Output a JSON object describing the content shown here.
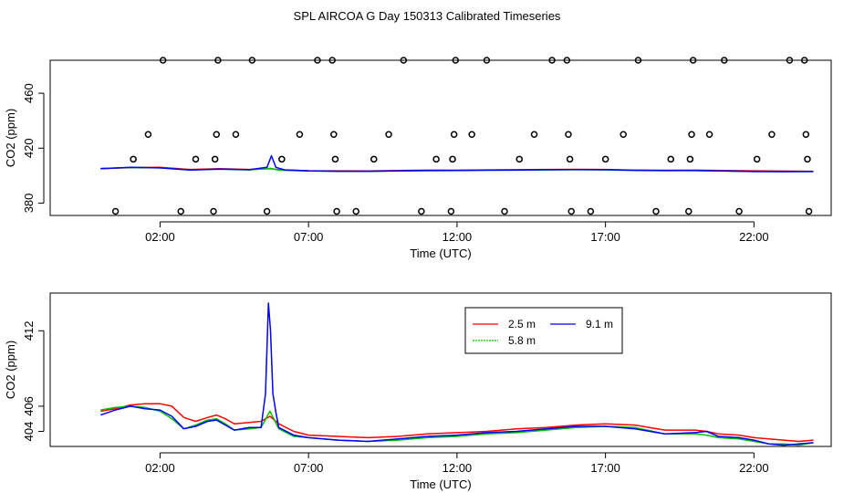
{
  "title": "SPL AIRCOA G  Day 150313  Calibrated Timeseries",
  "colors": {
    "red": "#ff0000",
    "green": "#00c000",
    "blue": "#0000ff",
    "axis": "#000000"
  },
  "chart_data": [
    {
      "type": "line",
      "title": "",
      "xlabel": "Time (UTC)",
      "ylabel": "CO2 (ppm)",
      "xlim": [
        -1.7,
        24.6
      ],
      "ylim": [
        371,
        484
      ],
      "x_ticks": [
        2,
        7,
        12,
        17,
        22
      ],
      "x_tick_labels": [
        "02:00",
        "07:00",
        "12:00",
        "17:00",
        "22:00"
      ],
      "y_ticks": [
        380,
        420,
        460
      ],
      "y_tick_labels": [
        "380",
        "420",
        "460"
      ],
      "series": [
        {
          "name": "red",
          "color": "#ff0000",
          "x": [
            0,
            1,
            2,
            3,
            4,
            5,
            5.7,
            6,
            7,
            8,
            9,
            10,
            11,
            12,
            13,
            14,
            15,
            16,
            17,
            18,
            19,
            20,
            21,
            22,
            23,
            24
          ],
          "values": [
            405,
            405.8,
            406,
            404.5,
            405,
            404.5,
            405,
            404.3,
            403.6,
            403.5,
            403.4,
            403.8,
            404,
            404,
            404.2,
            404.3,
            404.5,
            404.6,
            404.5,
            404,
            403.9,
            404,
            403.8,
            403.5,
            403.3,
            403.2
          ]
        },
        {
          "name": "green",
          "color": "#00c000",
          "x": [
            0,
            1,
            2,
            3,
            4,
            5,
            5.7,
            6,
            7,
            8,
            9,
            10,
            11,
            12,
            13,
            14,
            15,
            16,
            17,
            18,
            19,
            20,
            21,
            22,
            23,
            24
          ],
          "values": [
            405.2,
            405.9,
            405.6,
            404.2,
            404.7,
            404.2,
            405.3,
            404,
            403.4,
            403.2,
            403.1,
            403.4,
            403.6,
            403.7,
            403.9,
            404,
            404.2,
            404.3,
            404.2,
            403.8,
            403.6,
            403.7,
            403.3,
            403,
            402.9,
            403
          ]
        },
        {
          "name": "blue",
          "color": "#0000ff",
          "x": [
            0,
            1,
            2,
            3,
            4,
            5,
            5.6,
            5.75,
            5.9,
            6.2,
            7,
            8,
            9,
            10,
            11,
            12,
            13,
            14,
            15,
            16,
            17,
            18,
            19,
            20,
            21,
            22,
            23,
            24
          ],
          "values": [
            405,
            406,
            405.6,
            404.1,
            404.8,
            404.3,
            406,
            414.5,
            406,
            404.2,
            403.5,
            403.2,
            403.2,
            403.5,
            403.7,
            403.8,
            404,
            404.1,
            404.3,
            404.4,
            404.3,
            403.9,
            403.7,
            403.8,
            403.4,
            403,
            402.9,
            403
          ]
        }
      ],
      "scatter": {
        "marker": "open-circle",
        "points": [
          {
            "x": 0.5,
            "y": 374
          },
          {
            "x": 1.1,
            "y": 412
          },
          {
            "x": 1.6,
            "y": 430
          },
          {
            "x": 2.1,
            "y": 484
          },
          {
            "x": 2.7,
            "y": 374
          },
          {
            "x": 3.2,
            "y": 412
          },
          {
            "x": 3.8,
            "y": 374
          },
          {
            "x": 3.85,
            "y": 412
          },
          {
            "x": 3.9,
            "y": 430
          },
          {
            "x": 3.95,
            "y": 484
          },
          {
            "x": 4.55,
            "y": 430
          },
          {
            "x": 5.1,
            "y": 484
          },
          {
            "x": 5.6,
            "y": 374
          },
          {
            "x": 6.1,
            "y": 412
          },
          {
            "x": 6.7,
            "y": 430
          },
          {
            "x": 7.3,
            "y": 484
          },
          {
            "x": 7.8,
            "y": 484
          },
          {
            "x": 7.85,
            "y": 430
          },
          {
            "x": 7.9,
            "y": 412
          },
          {
            "x": 7.95,
            "y": 374
          },
          {
            "x": 8.6,
            "y": 374
          },
          {
            "x": 9.2,
            "y": 412
          },
          {
            "x": 9.7,
            "y": 430
          },
          {
            "x": 10.2,
            "y": 484
          },
          {
            "x": 10.8,
            "y": 374
          },
          {
            "x": 11.3,
            "y": 412
          },
          {
            "x": 11.8,
            "y": 374
          },
          {
            "x": 11.85,
            "y": 412
          },
          {
            "x": 11.9,
            "y": 430
          },
          {
            "x": 11.95,
            "y": 484
          },
          {
            "x": 12.5,
            "y": 430
          },
          {
            "x": 13.0,
            "y": 484
          },
          {
            "x": 13.6,
            "y": 374
          },
          {
            "x": 14.1,
            "y": 412
          },
          {
            "x": 14.6,
            "y": 430
          },
          {
            "x": 15.2,
            "y": 484
          },
          {
            "x": 15.7,
            "y": 484
          },
          {
            "x": 15.75,
            "y": 430
          },
          {
            "x": 15.8,
            "y": 412
          },
          {
            "x": 15.85,
            "y": 374
          },
          {
            "x": 16.5,
            "y": 374
          },
          {
            "x": 17.0,
            "y": 412
          },
          {
            "x": 17.6,
            "y": 430
          },
          {
            "x": 18.1,
            "y": 484
          },
          {
            "x": 18.7,
            "y": 374
          },
          {
            "x": 19.2,
            "y": 412
          },
          {
            "x": 19.8,
            "y": 374
          },
          {
            "x": 19.85,
            "y": 412
          },
          {
            "x": 19.9,
            "y": 430
          },
          {
            "x": 19.95,
            "y": 484
          },
          {
            "x": 20.5,
            "y": 430
          },
          {
            "x": 21.0,
            "y": 484
          },
          {
            "x": 21.5,
            "y": 374
          },
          {
            "x": 22.1,
            "y": 412
          },
          {
            "x": 22.6,
            "y": 430
          },
          {
            "x": 23.2,
            "y": 484
          },
          {
            "x": 23.7,
            "y": 484
          },
          {
            "x": 23.75,
            "y": 430
          },
          {
            "x": 23.8,
            "y": 412
          },
          {
            "x": 23.85,
            "y": 374
          }
        ]
      }
    },
    {
      "type": "line",
      "title": "",
      "xlabel": "Time (UTC)",
      "ylabel": "CO2 (ppm)",
      "xlim": [
        -1.7,
        24.6
      ],
      "ylim": [
        402.8,
        415
      ],
      "x_ticks": [
        2,
        7,
        12,
        17,
        22
      ],
      "x_tick_labels": [
        "02:00",
        "07:00",
        "12:00",
        "17:00",
        "22:00"
      ],
      "y_ticks": [
        404,
        406,
        412
      ],
      "y_tick_labels": [
        "404",
        "406",
        "412"
      ],
      "legend": {
        "placement": "top-center",
        "entries": [
          {
            "label": "2.5 m",
            "color": "#ff0000"
          },
          {
            "label": "9.1 m",
            "color": "#0000ff"
          },
          {
            "label": "5.8 m",
            "color": "#00c000"
          }
        ]
      },
      "series": [
        {
          "name": "2.5 m",
          "color": "#ff0000",
          "x": [
            0,
            0.5,
            1,
            1.5,
            2,
            2.4,
            2.8,
            3.2,
            3.6,
            3.9,
            4.2,
            4.5,
            5.0,
            5.4,
            5.7,
            6.0,
            6.5,
            7,
            8,
            9,
            10,
            11,
            12,
            13,
            14,
            15,
            16,
            17,
            18,
            19,
            20,
            20.4,
            20.8,
            21.5,
            22,
            22.5,
            23,
            23.5,
            24
          ],
          "values": [
            405.6,
            405.8,
            406.1,
            406.2,
            406.2,
            406.0,
            405.1,
            404.8,
            405.1,
            405.3,
            405.0,
            404.6,
            404.7,
            404.8,
            405.2,
            404.6,
            404.0,
            403.7,
            403.6,
            403.5,
            403.6,
            403.8,
            403.9,
            404.0,
            404.2,
            404.3,
            404.5,
            404.6,
            404.5,
            404.1,
            404.1,
            404.0,
            403.8,
            403.7,
            403.5,
            403.4,
            403.3,
            403.2,
            403.3
          ]
        },
        {
          "name": "5.8 m",
          "color": "#00c000",
          "x": [
            0,
            0.5,
            1,
            1.5,
            2,
            2.4,
            2.8,
            3.2,
            3.6,
            3.9,
            4.2,
            4.5,
            5.0,
            5.4,
            5.7,
            6.0,
            6.5,
            7,
            8,
            9,
            10,
            11,
            12,
            13,
            14,
            15,
            16,
            17,
            18,
            19,
            20,
            20.4,
            20.8,
            21.5,
            22,
            22.5,
            23,
            23.5,
            24
          ],
          "values": [
            405.7,
            405.9,
            406.0,
            405.9,
            405.6,
            405.0,
            404.2,
            404.5,
            404.9,
            405.0,
            404.6,
            404.1,
            404.2,
            404.3,
            405.6,
            404.2,
            403.6,
            403.5,
            403.3,
            403.2,
            403.3,
            403.5,
            403.6,
            403.8,
            403.9,
            404.1,
            404.3,
            404.4,
            404.3,
            403.8,
            403.8,
            403.7,
            403.5,
            403.4,
            403.2,
            403.0,
            403.0,
            402.9,
            403.1
          ]
        },
        {
          "name": "9.1 m",
          "color": "#0000ff",
          "x": [
            0,
            0.5,
            1,
            1.5,
            2,
            2.4,
            2.8,
            3.2,
            3.6,
            3.9,
            4.2,
            4.5,
            5.0,
            5.4,
            5.55,
            5.65,
            5.72,
            5.8,
            5.9,
            6.0,
            6.5,
            7,
            8,
            9,
            10,
            11,
            12,
            13,
            14,
            15,
            16,
            17,
            18,
            19,
            20,
            20.4,
            20.8,
            21.5,
            22,
            22.5,
            23,
            23.5,
            24
          ],
          "values": [
            405.3,
            405.7,
            406.0,
            405.8,
            405.7,
            405.2,
            404.2,
            404.4,
            404.8,
            404.9,
            404.5,
            404.1,
            404.3,
            404.3,
            407.0,
            414.2,
            412.0,
            407.0,
            405.5,
            404.3,
            403.7,
            403.5,
            403.3,
            403.2,
            403.4,
            403.6,
            403.7,
            403.9,
            404.0,
            404.2,
            404.4,
            404.4,
            404.2,
            403.8,
            403.9,
            404.0,
            403.6,
            403.5,
            403.3,
            403.0,
            402.9,
            403.0,
            403.1
          ]
        }
      ]
    }
  ]
}
